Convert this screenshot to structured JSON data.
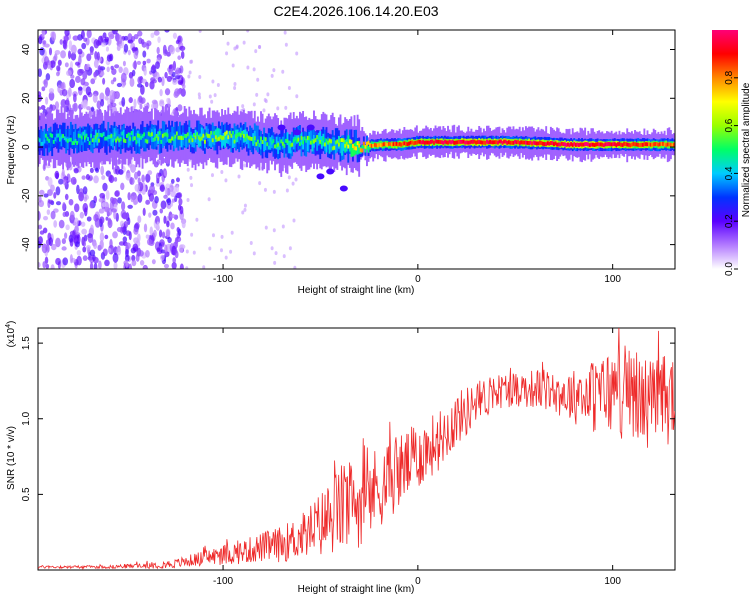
{
  "title": "C2E4.2026.106.14.20.E03",
  "colors": {
    "background": "#ffffff",
    "axis": "#000000",
    "snr_line": "#ee2a2a",
    "colormap": [
      "#ffffff",
      "#b37bff",
      "#5a00ff",
      "#0033ff",
      "#00ccff",
      "#00ff66",
      "#99ff00",
      "#ffff00",
      "#ff8800",
      "#ff0000",
      "#ff0077"
    ]
  },
  "chart_data": [
    {
      "id": "spectrogram",
      "type": "heatmap",
      "title": "C2E4.2026.106.14.20.E03",
      "xlabel": "Height of straight line (km)",
      "ylabel": "Frequency (Hz)",
      "xlim": [
        -195,
        132
      ],
      "ylim": [
        -50,
        48
      ],
      "xticks": [
        -100,
        0,
        100
      ],
      "yticks": [
        -40,
        -20,
        0,
        20,
        40
      ],
      "colorbar": {
        "label": "Normalized spectral amplitude",
        "range": [
          0,
          1
        ],
        "ticks": [
          0.0,
          0.2,
          0.4,
          0.6,
          0.8
        ]
      },
      "ridge": {
        "description_points_x": [
          -195,
          -150,
          -120,
          -100,
          -90,
          -80,
          -70,
          -60,
          -50,
          -40,
          -30,
          -20,
          -10,
          0,
          20,
          50,
          80,
          100,
          132
        ],
        "center_freq_hz": [
          3,
          4,
          4,
          4,
          4,
          2,
          1,
          3,
          2,
          1,
          0,
          1,
          1,
          2,
          2,
          2,
          1,
          1,
          1
        ],
        "peak_amplitude": [
          0.45,
          0.5,
          0.55,
          0.6,
          0.55,
          0.5,
          0.5,
          0.55,
          0.55,
          0.6,
          0.75,
          0.8,
          0.85,
          0.9,
          0.92,
          0.92,
          0.95,
          0.95,
          0.8
        ]
      }
    },
    {
      "id": "snr",
      "type": "line",
      "xlabel": "Height of straight line (km)",
      "ylabel": "SNR (10 * v/v)",
      "multiplier_label": "(x10",
      "multiplier_exp": "4",
      "xlim": [
        -195,
        132
      ],
      "ylim": [
        0,
        1.6
      ],
      "xticks": [
        -100,
        0,
        100
      ],
      "yticks": [
        0.5,
        1.0,
        1.5
      ],
      "ytick_labels": [
        "0.5",
        "1.0",
        "1.5"
      ],
      "series": [
        {
          "name": "SNR",
          "x": [
            -195,
            -160,
            -140,
            -125,
            -110,
            -100,
            -90,
            -80,
            -70,
            -60,
            -50,
            -40,
            -30,
            -20,
            -10,
            0,
            10,
            20,
            30,
            40,
            50,
            60,
            70,
            80,
            90,
            100,
            110,
            120,
            132
          ],
          "mean": [
            0.02,
            0.02,
            0.03,
            0.04,
            0.08,
            0.1,
            0.12,
            0.15,
            0.17,
            0.22,
            0.3,
            0.4,
            0.45,
            0.55,
            0.65,
            0.75,
            0.85,
            1.0,
            1.1,
            1.18,
            1.2,
            1.2,
            1.18,
            1.15,
            1.15,
            1.18,
            1.15,
            1.1,
            1.15
          ],
          "spread": [
            0.01,
            0.01,
            0.02,
            0.03,
            0.05,
            0.07,
            0.08,
            0.1,
            0.12,
            0.15,
            0.22,
            0.3,
            0.3,
            0.28,
            0.25,
            0.22,
            0.2,
            0.18,
            0.15,
            0.12,
            0.12,
            0.13,
            0.15,
            0.18,
            0.25,
            0.3,
            0.32,
            0.3,
            0.32
          ]
        }
      ]
    }
  ]
}
